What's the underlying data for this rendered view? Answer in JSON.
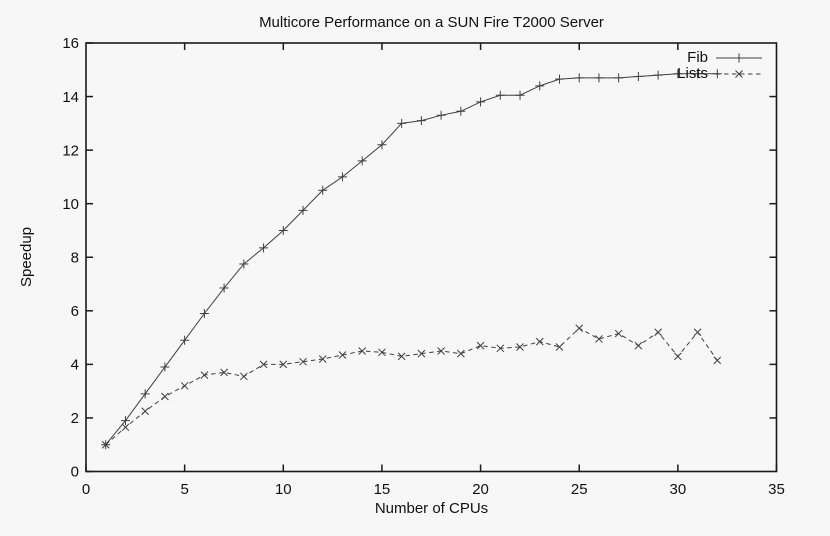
{
  "page": {
    "background": "#f7f7f7",
    "text_color": "#111111"
  },
  "chart_data": {
    "type": "line",
    "title": "Multicore Performance on a SUN Fire T2000 Server",
    "xlabel": "Number of CPUs",
    "ylabel": "Speedup",
    "xlim": [
      0,
      35
    ],
    "ylim": [
      0,
      16
    ],
    "xticks": [
      0,
      5,
      10,
      15,
      20,
      25,
      30,
      35
    ],
    "yticks": [
      0,
      2,
      4,
      6,
      8,
      10,
      12,
      14,
      16
    ],
    "grid": false,
    "legend_position": "top-right-inside",
    "frame_color": "#1a1a1a",
    "x": [
      1,
      2,
      3,
      4,
      5,
      6,
      7,
      8,
      9,
      10,
      11,
      12,
      13,
      14,
      15,
      16,
      17,
      18,
      19,
      20,
      21,
      22,
      23,
      24,
      25,
      26,
      27,
      28,
      29,
      30,
      31,
      32
    ],
    "series": [
      {
        "name": "Fib",
        "line_style": "solid",
        "marker": "plus",
        "color": "#3f3f3f",
        "values": [
          1.0,
          1.9,
          2.9,
          3.9,
          4.9,
          5.9,
          6.85,
          7.75,
          8.35,
          9.0,
          9.75,
          10.5,
          11.0,
          11.6,
          12.2,
          13.0,
          13.1,
          13.3,
          13.45,
          13.8,
          14.05,
          14.05,
          14.4,
          14.65,
          14.7,
          14.7,
          14.7,
          14.75,
          14.8,
          14.85,
          14.85,
          14.85
        ]
      },
      {
        "name": "Lists",
        "line_style": "dashed",
        "marker": "cross",
        "color": "#3f3f3f",
        "values": [
          1.0,
          1.65,
          2.25,
          2.8,
          3.2,
          3.6,
          3.7,
          3.55,
          4.0,
          4.0,
          4.1,
          4.2,
          4.35,
          4.5,
          4.45,
          4.3,
          4.4,
          4.5,
          4.4,
          4.7,
          4.6,
          4.65,
          4.85,
          4.65,
          5.35,
          4.95,
          5.15,
          4.7,
          5.2,
          4.3,
          5.2,
          4.15
        ]
      }
    ]
  }
}
